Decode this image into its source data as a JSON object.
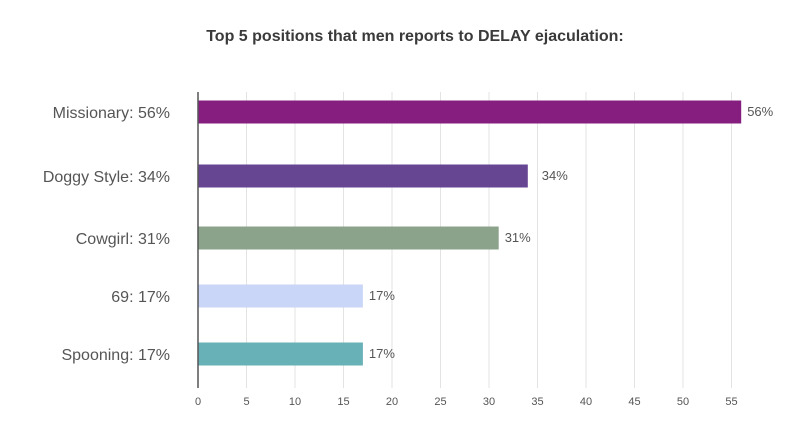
{
  "chart_data": {
    "type": "bar",
    "orientation": "horizontal",
    "title_parts": [
      {
        "text": "Top 5 positions",
        "bold": true
      },
      {
        "text": " that men reports to ",
        "bold": false
      },
      {
        "text": "DELAY ejaculation:",
        "bold": true
      }
    ],
    "categories": [
      "Missionary: 56%",
      "Doggy Style: 34%",
      "Cowgirl: 31%",
      "69: 17%",
      "Spooning: 17%"
    ],
    "values": [
      56,
      34,
      31,
      17,
      17
    ],
    "value_labels": [
      "56%",
      "34%",
      "31%",
      "17%",
      "17%"
    ],
    "colors": [
      "#861e80",
      "#664693",
      "#8aa38a",
      "#c9d6f8",
      "#68b1b6"
    ],
    "xlim": [
      0,
      57
    ],
    "xticks": [
      0,
      5,
      10,
      15,
      20,
      25,
      30,
      35,
      40,
      45,
      50,
      55
    ],
    "grid": "vertical",
    "legend": "none"
  }
}
